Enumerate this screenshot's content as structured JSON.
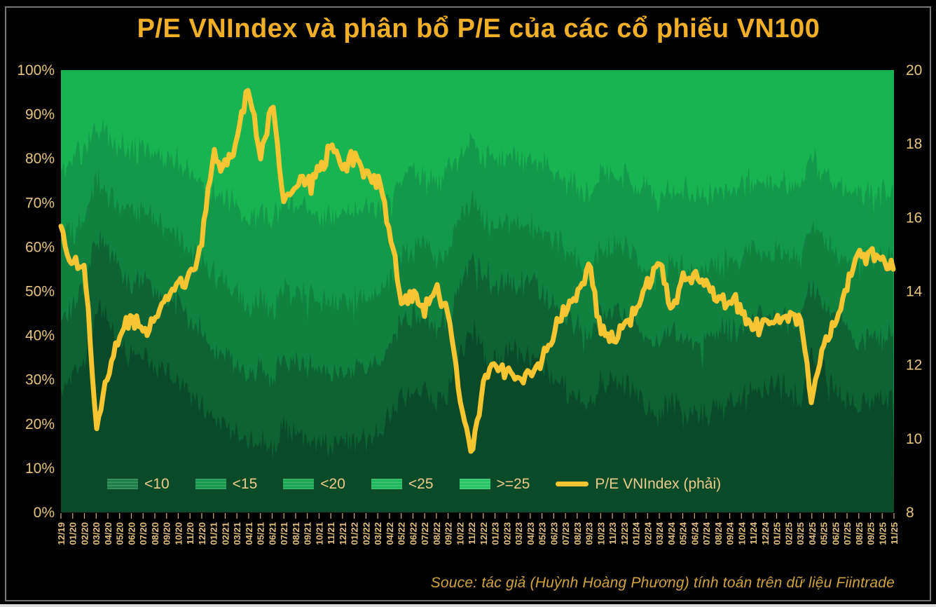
{
  "page": {
    "background": "#000000",
    "frame_border_color": "#747474",
    "page_edge_color": "#dcdcdc"
  },
  "title": {
    "text": "P/E VNIndex và phân bổ P/E của các cổ phiếu VN100",
    "color": "#F0AF26"
  },
  "axes": {
    "left_tick_labels": [
      "100%",
      "90%",
      "80%",
      "70%",
      "60%",
      "50%",
      "40%",
      "30%",
      "20%",
      "10%",
      "0%"
    ],
    "right_tick_labels": [
      "20",
      "18",
      "16",
      "14",
      "12",
      "10",
      "8"
    ],
    "axis_label_color": "#E5C47E",
    "x_label_color": "#E3C07D",
    "x_tick_color": "#C9AF7E",
    "x_labels": [
      "12/19",
      "01/20",
      "02/20",
      "03/20",
      "04/20",
      "05/20",
      "06/20",
      "07/20",
      "08/20",
      "09/20",
      "10/20",
      "11/20",
      "12/20",
      "01/21",
      "02/21",
      "03/21",
      "04/21",
      "05/21",
      "06/21",
      "07/21",
      "08/21",
      "09/21",
      "10/21",
      "11/21",
      "12/21",
      "01/22",
      "02/22",
      "03/22",
      "04/22",
      "05/22",
      "06/22",
      "07/22",
      "08/22",
      "09/22",
      "10/22",
      "11/22",
      "12/22",
      "01/23",
      "02/23",
      "03/23",
      "04/23",
      "05/23",
      "06/23",
      "07/23",
      "08/23",
      "09/23",
      "10/23",
      "11/23",
      "12/23",
      "01/24",
      "02/24",
      "03/24",
      "04/24",
      "05/24",
      "06/24",
      "07/24",
      "08/24",
      "09/24",
      "10/24",
      "11/24",
      "12/24",
      "01/25",
      "02/25",
      "03/25",
      "04/25",
      "05/25",
      "06/25",
      "07/25",
      "08/25",
      "09/25",
      "10/25",
      "11/25"
    ]
  },
  "legend": {
    "text_color": "#EACB8C",
    "items": [
      {
        "label": "<10",
        "swatch_color": "#1B7F47"
      },
      {
        "label": "<15",
        "swatch_color": "#17964E"
      },
      {
        "label": "<20",
        "swatch_color": "#1AA653"
      },
      {
        "label": "<25",
        "swatch_color": "#1FB75B"
      },
      {
        "label": ">=25",
        "swatch_color": "#27C463"
      }
    ],
    "line_item": {
      "label": "P/E VNIndex (phải)",
      "color": "#F7C532"
    }
  },
  "source": {
    "text": "Souce: tác giả (Huỳnh Hoàng Phương) tính toán trên dữ liệu Fiintrade",
    "color": "#D1A33E"
  },
  "chart_data": {
    "type": "area",
    "subtype": "100-percent-stacked-area-with-line",
    "title": "P/E VNIndex và phân bổ P/E của các cổ phiếu VN100",
    "legend_position": "bottom-inside",
    "grid": false,
    "left_axis": {
      "min": 0,
      "max": 100,
      "step": 10,
      "format": "percent"
    },
    "right_axis": {
      "min": 8,
      "max": 20,
      "step": 2
    },
    "categories": [
      "12/19",
      "01/20",
      "02/20",
      "03/20",
      "04/20",
      "05/20",
      "06/20",
      "07/20",
      "08/20",
      "09/20",
      "10/20",
      "11/20",
      "12/20",
      "01/21",
      "02/21",
      "03/21",
      "04/21",
      "05/21",
      "06/21",
      "07/21",
      "08/21",
      "09/21",
      "10/21",
      "11/21",
      "12/21",
      "01/22",
      "02/22",
      "03/22",
      "04/22",
      "05/22",
      "06/22",
      "07/22",
      "08/22",
      "09/22",
      "10/22",
      "11/22",
      "12/22",
      "01/23",
      "02/23",
      "03/23",
      "04/23",
      "05/23",
      "06/23",
      "07/23",
      "08/23",
      "09/23",
      "10/23",
      "11/23",
      "12/23",
      "01/24",
      "02/24",
      "03/24",
      "04/24",
      "05/24",
      "06/24",
      "07/24",
      "08/24",
      "09/24",
      "10/24",
      "11/24",
      "12/24",
      "01/25",
      "02/25",
      "03/25",
      "04/25",
      "05/25",
      "06/25",
      "07/25",
      "08/25",
      "09/25",
      "10/25",
      "11/25"
    ],
    "stack": {
      "names": [
        "<10",
        "<15",
        "<20",
        "<25",
        ">=25"
      ],
      "colors": [
        "#0B4A28",
        "#0D6334",
        "#10813F",
        "#13994A",
        "#17B451"
      ],
      "note": "cumulative_top_pct holds the cumulative share (%) at the top of each band; >=25 tops out at 100",
      "cumulative_top_pct": {
        "<10": [
          28,
          30,
          34,
          46,
          44,
          38,
          35,
          36,
          34,
          32,
          30,
          27,
          24,
          21,
          20,
          18,
          15,
          17,
          14,
          19,
          18,
          17,
          16,
          15,
          16,
          16,
          17,
          17,
          21,
          26,
          27,
          28,
          25,
          27,
          35,
          42,
          37,
          35,
          36,
          36,
          35,
          34,
          31,
          28,
          26,
          23,
          29,
          30,
          29,
          27,
          24,
          21,
          26,
          23,
          22,
          23,
          25,
          25,
          26,
          28,
          28,
          28,
          27,
          27,
          36,
          31,
          28,
          25,
          24,
          26,
          25,
          27
        ],
        "<15": [
          44,
          46,
          50,
          62,
          60,
          55,
          52,
          53,
          51,
          49,
          47,
          44,
          41,
          38,
          36,
          34,
          31,
          33,
          30,
          35,
          34,
          33,
          32,
          31,
          32,
          32,
          33,
          33,
          38,
          43,
          44,
          45,
          42,
          44,
          52,
          58,
          53,
          51,
          52,
          52,
          51,
          50,
          47,
          44,
          42,
          39,
          45,
          46,
          45,
          43,
          40,
          37,
          42,
          39,
          38,
          39,
          41,
          41,
          42,
          44,
          44,
          44,
          43,
          43,
          52,
          47,
          44,
          41,
          38,
          40,
          39,
          41
        ],
        "<20": [
          62,
          64,
          67,
          75,
          73,
          69,
          67,
          68,
          66,
          64,
          62,
          60,
          57,
          54,
          52,
          50,
          47,
          49,
          46,
          51,
          50,
          49,
          48,
          47,
          48,
          48,
          49,
          49,
          53,
          58,
          59,
          60,
          57,
          59,
          66,
          71,
          67,
          65,
          66,
          66,
          65,
          64,
          62,
          59,
          57,
          54,
          60,
          61,
          60,
          58,
          55,
          52,
          57,
          55,
          54,
          55,
          56,
          56,
          57,
          59,
          59,
          59,
          58,
          58,
          66,
          62,
          59,
          56,
          56,
          58,
          58,
          59
        ],
        "<25": [
          79,
          80,
          82,
          87,
          86,
          83,
          82,
          82,
          81,
          80,
          79,
          77,
          75,
          73,
          71,
          70,
          67,
          68,
          66,
          70,
          69,
          69,
          68,
          67,
          68,
          68,
          69,
          69,
          72,
          76,
          77,
          77,
          75,
          77,
          81,
          84,
          81,
          80,
          80,
          80,
          80,
          79,
          77,
          75,
          74,
          72,
          76,
          76,
          76,
          75,
          73,
          70,
          74,
          72,
          72,
          72,
          73,
          73,
          74,
          75,
          75,
          75,
          74,
          74,
          81,
          77,
          75,
          73,
          72,
          73,
          73,
          74
        ]
      }
    },
    "line_series": {
      "name": "P/E VNIndex (phải)",
      "axis": "right",
      "color": "#F7C532",
      "values": [
        15.7,
        14.6,
        14.9,
        10.3,
        11.7,
        12.8,
        13.3,
        12.9,
        13.3,
        13.7,
        14.1,
        14.4,
        15.3,
        17.8,
        17.3,
        18.2,
        19.5,
        17.6,
        19.2,
        16.4,
        16.8,
        17.0,
        17.3,
        17.9,
        17.4,
        17.6,
        17.1,
        17.2,
        15.6,
        13.9,
        13.8,
        13.5,
        14.1,
        13.5,
        11.2,
        9.5,
        11.6,
        12.0,
        11.8,
        11.7,
        11.8,
        12.1,
        12.9,
        13.5,
        13.9,
        14.7,
        13.0,
        12.8,
        13.0,
        13.5,
        14.2,
        14.9,
        13.5,
        14.3,
        14.5,
        14.3,
        13.8,
        13.7,
        13.6,
        13.0,
        13.1,
        13.1,
        13.4,
        13.3,
        11.0,
        12.6,
        13.1,
        14.2,
        15.1,
        15.0,
        14.9,
        14.6
      ]
    }
  }
}
